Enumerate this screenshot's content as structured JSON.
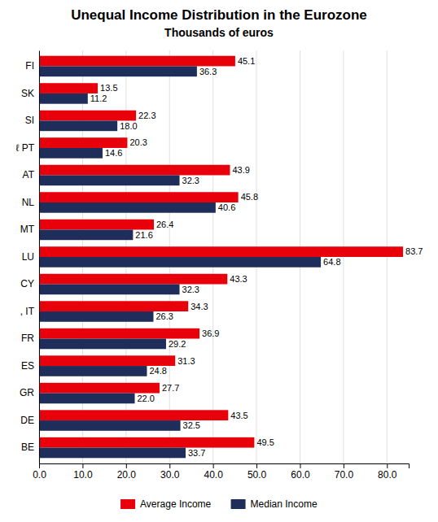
{
  "chart_data": {
    "type": "bar",
    "orientation": "horizontal",
    "title": "Unequal Income Distribution in the Eurozone",
    "subtitle": "Thousands of euros",
    "categories": [
      "FI",
      "SK",
      "SI",
      "ℓ PT",
      "AT",
      "NL",
      "MT",
      "LU",
      "CY",
      ", IT",
      "FR",
      "ES",
      "GR",
      "DE",
      "BE"
    ],
    "series": [
      {
        "name": "Average Income",
        "color": "#e8000b",
        "values": [
          45.1,
          13.5,
          22.3,
          20.3,
          43.9,
          45.8,
          26.4,
          83.7,
          43.3,
          34.3,
          36.9,
          31.3,
          27.7,
          43.5,
          49.5
        ],
        "value_labels": [
          "45.1",
          "13.5",
          "22.3",
          "20.3",
          "43.9",
          "45.8",
          "26.4",
          "83.7",
          "43.3",
          "34.3",
          "36.9",
          "31.3",
          "27.7",
          "43.5",
          "49.5"
        ]
      },
      {
        "name": "Median Income",
        "color": "#1f2d5a",
        "values": [
          36.3,
          11.2,
          18.0,
          14.6,
          32.3,
          40.6,
          21.6,
          64.8,
          32.3,
          26.3,
          29.2,
          24.8,
          22.0,
          32.5,
          33.7
        ],
        "value_labels": [
          "36.3",
          "11.2",
          "18.0",
          "14.6",
          "32.3",
          "40.6",
          "21.6",
          "64.8",
          "32.3",
          "26.3",
          "29.2",
          "24.8",
          "22.0",
          "32.5",
          "33.7"
        ]
      }
    ],
    "xlim": [
      0,
      85
    ],
    "xticks": [
      {
        "value": 0,
        "label": "0.0"
      },
      {
        "value": 10,
        "label": "10.0"
      },
      {
        "value": 20,
        "label": "20.0"
      },
      {
        "value": 30,
        "label": "30.0"
      },
      {
        "value": 40,
        "label": "40.0"
      },
      {
        "value": 50,
        "label": "50.0"
      },
      {
        "value": 60,
        "label": "60.0"
      },
      {
        "value": 70,
        "label": "70.0"
      },
      {
        "value": 80,
        "label": "80.0"
      }
    ],
    "grid": true,
    "data_labels": true,
    "legend": "bottom"
  }
}
